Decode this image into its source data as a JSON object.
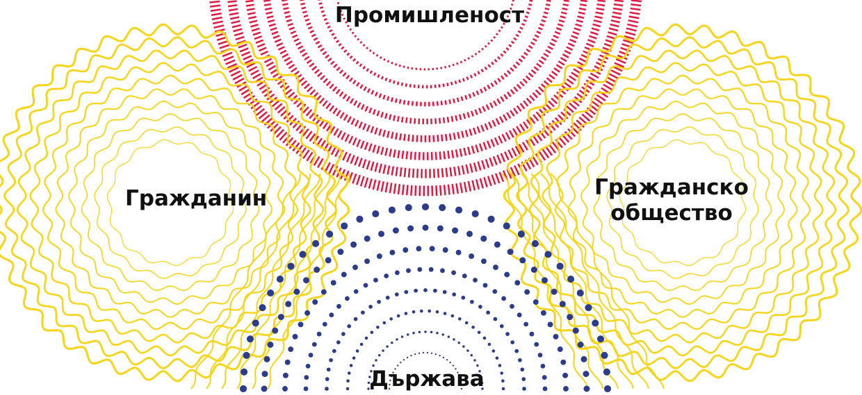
{
  "labels": {
    "industry": "Промишленост",
    "citizen": "Гражданин",
    "civil_society_line1": "Гражданско",
    "civil_society_line2": "общество",
    "state": "Държава"
  },
  "colors": {
    "wavy_rings": "#f7d417",
    "dashed_rings": "#e3173f",
    "dots": "#2b3c8a",
    "background": "#ffffff",
    "label_text": "#111111"
  },
  "nodes": [
    {
      "id": "citizen",
      "label_key": "citizen",
      "style": "wavy-rings"
    },
    {
      "id": "civil_society",
      "label_key": "civil_society",
      "style": "wavy-rings"
    },
    {
      "id": "industry",
      "label_key": "industry",
      "style": "dashed-rings"
    },
    {
      "id": "state",
      "label_key": "state",
      "style": "dotted-rings"
    }
  ]
}
